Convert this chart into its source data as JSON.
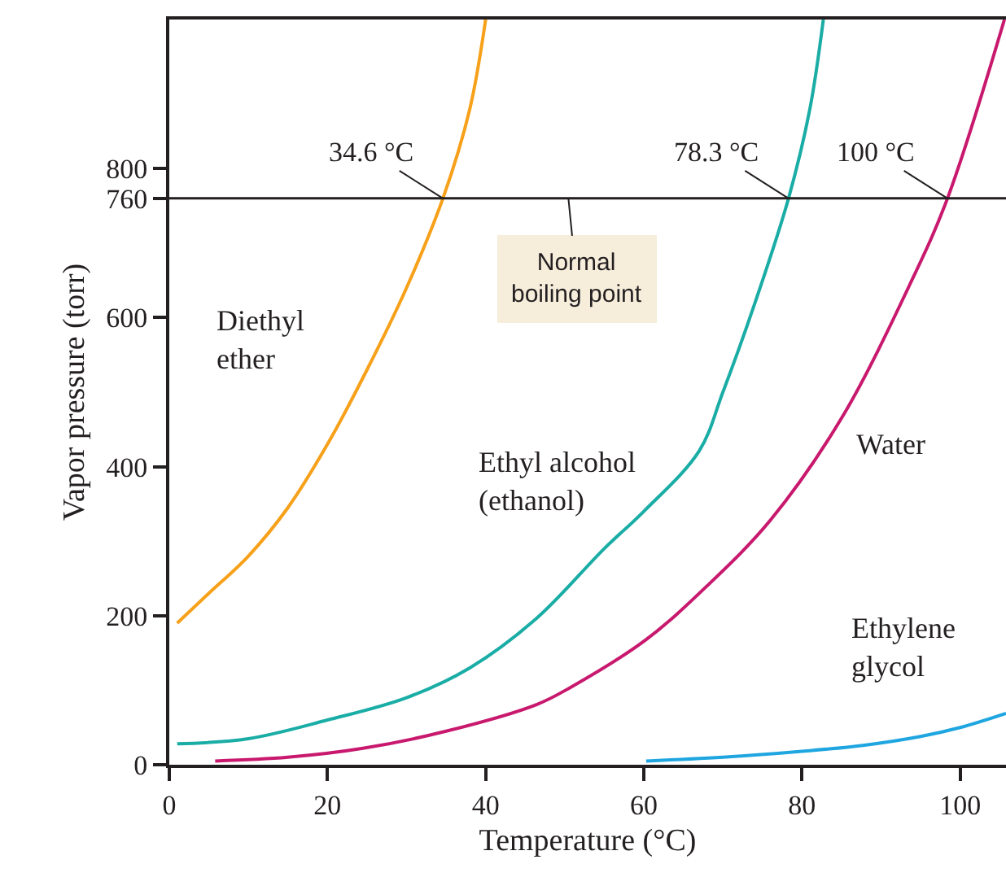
{
  "chart_data": {
    "type": "line",
    "xlabel": "Temperature (°C)",
    "ylabel": "Vapor pressure (torr)",
    "series": [
      {
        "name": "Diethyl\nether",
        "color": "#f7a11a",
        "x": [
          1,
          5,
          10,
          15,
          20,
          25,
          30,
          34.6,
          38,
          40
        ],
        "values": [
          190,
          230,
          280,
          345,
          430,
          530,
          640,
          760,
          880,
          1000
        ]
      },
      {
        "name": "Ethyl alcohol\n(ethanol)",
        "color": "#1aada6",
        "x": [
          1,
          10,
          20,
          30,
          38,
          46.5,
          55,
          60,
          67,
          70,
          74,
          78.3,
          81,
          82.7
        ],
        "values": [
          28,
          35,
          60,
          90,
          130,
          197,
          290,
          340,
          421,
          500,
          618,
          760,
          880,
          1000
        ]
      },
      {
        "name": "Water",
        "color": "#c8196e",
        "x": [
          5.8,
          15,
          24.5,
          35,
          46.5,
          50.6,
          60.3,
          68,
          76,
          85,
          93.8,
          98.4,
          105.6
        ],
        "values": [
          5,
          10,
          22,
          45,
          81,
          103,
          168,
          240,
          328,
          465,
          648,
          760,
          1000
        ]
      },
      {
        "name": "Ethylene\nglycol",
        "color": "#1fa6e0",
        "x": [
          60.3,
          70,
          80,
          87.7,
          95,
          100,
          105.8
        ],
        "values": [
          5,
          10,
          18,
          26,
          38,
          50,
          69
        ]
      }
    ],
    "xlim": [
      0,
      105.8
    ],
    "ylim": [
      0,
      1000
    ],
    "xticks": [
      0,
      20,
      40,
      60,
      80,
      100
    ],
    "yticks": [
      0,
      200,
      400,
      600,
      760,
      800
    ],
    "ref_lines": [
      {
        "axis": "y",
        "value": 760,
        "label": "Normal\nboiling point",
        "color": "#231f20"
      }
    ],
    "annotations": [
      {
        "text": "34.6 °C",
        "x": 34.6,
        "y": 760
      },
      {
        "text": "78.3 °C",
        "x": 78.3,
        "y": 760
      },
      {
        "text": "100 °C",
        "x": 98.4,
        "y": 760
      }
    ],
    "grid": false,
    "marker": "none",
    "line_style": "solid"
  }
}
